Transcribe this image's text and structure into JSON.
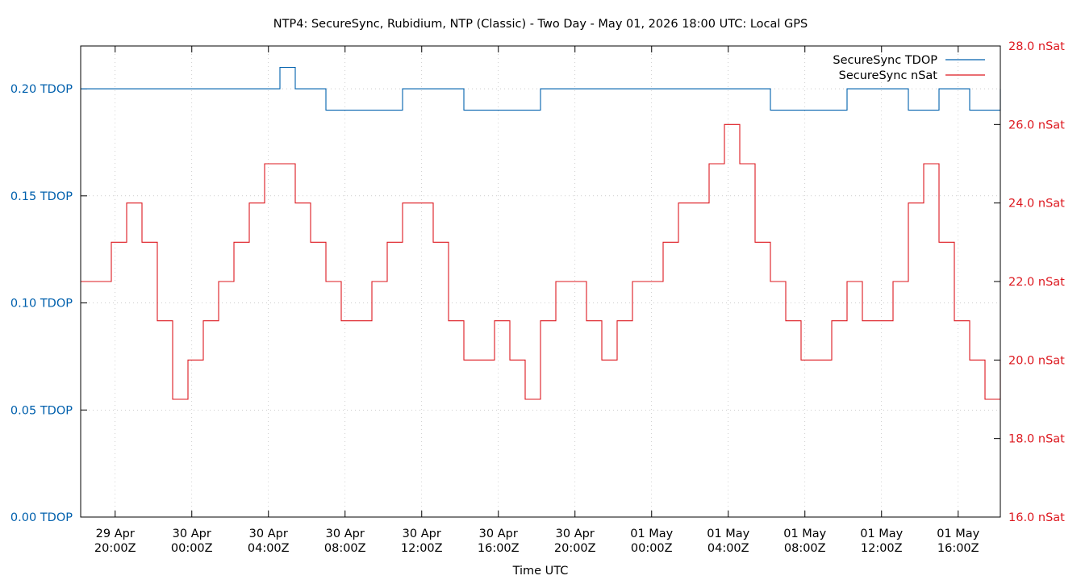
{
  "chart_data": {
    "type": "line",
    "title": "NTP4: SecureSync, Rubidium, NTP (Classic) - Two Day - May 01, 2026 18:00 UTC: Local GPS",
    "xlabel": "Time UTC",
    "x_ticks": [
      {
        "date": "29 Apr",
        "time": "20:00Z",
        "hour": 20
      },
      {
        "date": "30 Apr",
        "time": "00:00Z",
        "hour": 24
      },
      {
        "date": "30 Apr",
        "time": "04:00Z",
        "hour": 28
      },
      {
        "date": "30 Apr",
        "time": "08:00Z",
        "hour": 32
      },
      {
        "date": "30 Apr",
        "time": "12:00Z",
        "hour": 36
      },
      {
        "date": "30 Apr",
        "time": "16:00Z",
        "hour": 40
      },
      {
        "date": "30 Apr",
        "time": "20:00Z",
        "hour": 44
      },
      {
        "date": "01 May",
        "time": "00:00Z",
        "hour": 48
      },
      {
        "date": "01 May",
        "time": "04:00Z",
        "hour": 52
      },
      {
        "date": "01 May",
        "time": "08:00Z",
        "hour": 56
      },
      {
        "date": "01 May",
        "time": "12:00Z",
        "hour": 60
      },
      {
        "date": "01 May",
        "time": "16:00Z",
        "hour": 64
      }
    ],
    "xlim": [
      18.2,
      66.2
    ],
    "y_left": {
      "ylim": [
        0.0,
        0.22
      ],
      "ticks": [
        {
          "v": 0.0,
          "label": "0.00 TDOP"
        },
        {
          "v": 0.05,
          "label": "0.05 TDOP"
        },
        {
          "v": 0.1,
          "label": "0.10 TDOP"
        },
        {
          "v": 0.15,
          "label": "0.15 TDOP"
        },
        {
          "v": 0.2,
          "label": "0.20 TDOP"
        }
      ]
    },
    "y_right": {
      "ylim": [
        16,
        28
      ],
      "ticks": [
        {
          "v": 16,
          "label": "16.0 nSat"
        },
        {
          "v": 18,
          "label": "18.0 nSat"
        },
        {
          "v": 20,
          "label": "20.0 nSat"
        },
        {
          "v": 22,
          "label": "22.0 nSat"
        },
        {
          "v": 24,
          "label": "24.0 nSat"
        },
        {
          "v": 26,
          "label": "26.0 nSat"
        },
        {
          "v": 28,
          "label": "28.0 nSat"
        }
      ]
    },
    "grid": true,
    "legend_position": "top-right",
    "series": [
      {
        "name": "SecureSync TDOP",
        "axis": "left",
        "color": "#0060ad",
        "x": [
          18.2,
          19.0,
          19.8,
          20.6,
          21.4,
          22.2,
          23.0,
          23.8,
          24.6,
          25.4,
          26.2,
          27.0,
          27.8,
          28.6,
          29.4,
          30.2,
          31.0,
          31.8,
          32.6,
          33.4,
          34.2,
          35.0,
          35.8,
          36.6,
          37.4,
          38.2,
          39.0,
          39.8,
          40.6,
          41.4,
          42.2,
          43.0,
          43.8,
          44.6,
          45.4,
          46.2,
          47.0,
          47.8,
          48.6,
          49.4,
          50.2,
          51.0,
          51.8,
          52.6,
          53.4,
          54.2,
          55.0,
          55.8,
          56.6,
          57.4,
          58.2,
          59.0,
          59.8,
          60.6,
          61.4,
          62.2,
          63.0,
          63.8,
          64.6,
          65.4,
          66.2
        ],
        "values": [
          0.2,
          0.2,
          0.2,
          0.2,
          0.2,
          0.2,
          0.2,
          0.2,
          0.2,
          0.2,
          0.2,
          0.2,
          0.2,
          0.21,
          0.2,
          0.2,
          0.19,
          0.19,
          0.19,
          0.19,
          0.19,
          0.2,
          0.2,
          0.2,
          0.2,
          0.19,
          0.19,
          0.19,
          0.19,
          0.19,
          0.2,
          0.2,
          0.2,
          0.2,
          0.2,
          0.2,
          0.2,
          0.2,
          0.2,
          0.2,
          0.2,
          0.2,
          0.2,
          0.2,
          0.2,
          0.19,
          0.19,
          0.19,
          0.19,
          0.19,
          0.2,
          0.2,
          0.2,
          0.2,
          0.19,
          0.19,
          0.2,
          0.2,
          0.19,
          0.19,
          0.2
        ]
      },
      {
        "name": "SecureSync nSat",
        "axis": "right",
        "color": "#dd181f",
        "x": [
          18.2,
          19.0,
          19.8,
          20.6,
          21.4,
          22.2,
          23.0,
          23.8,
          24.6,
          25.4,
          26.2,
          27.0,
          27.8,
          28.6,
          29.4,
          30.2,
          31.0,
          31.8,
          32.6,
          33.4,
          34.2,
          35.0,
          35.8,
          36.6,
          37.4,
          38.2,
          39.0,
          39.8,
          40.6,
          41.4,
          42.2,
          43.0,
          43.8,
          44.6,
          45.4,
          46.2,
          47.0,
          47.8,
          48.6,
          49.4,
          50.2,
          51.0,
          51.8,
          52.6,
          53.4,
          54.2,
          55.0,
          55.8,
          56.6,
          57.4,
          58.2,
          59.0,
          59.8,
          60.6,
          61.4,
          62.2,
          63.0,
          63.8,
          64.6,
          65.4,
          66.2
        ],
        "values": [
          22,
          22,
          23,
          24,
          23,
          21,
          19,
          20,
          21,
          22,
          23,
          24,
          25,
          25,
          24,
          23,
          22,
          21,
          21,
          22,
          23,
          24,
          24,
          23,
          21,
          20,
          20,
          21,
          20,
          19,
          21,
          22,
          22,
          21,
          20,
          21,
          22,
          22,
          23,
          24,
          24,
          25,
          26,
          25,
          23,
          22,
          21,
          20,
          20,
          21,
          22,
          21,
          21,
          22,
          24,
          25,
          23,
          21,
          20,
          19,
          20
        ]
      }
    ]
  }
}
